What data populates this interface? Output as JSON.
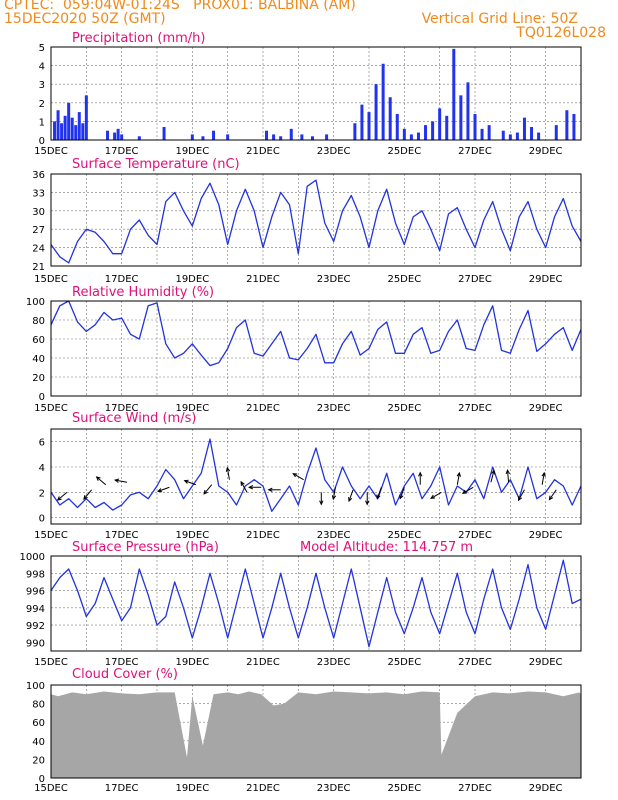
{
  "header": {
    "line1_left": "CPTEC:  059:04W-01:24S   PROX01: BALBINA (AM)",
    "line2_left": "15DEC2020 50Z (GMT)",
    "line2_right": "Vertical Grid Line: 50Z",
    "line3_right": "TQ0126L028"
  },
  "colors": {
    "header": "#f08a1c",
    "title": "#e0107a",
    "line": "#2233dd",
    "bar": "#2233ee",
    "wind_arrow": "#000000",
    "cloud": "#a6a6a6"
  },
  "x_ticks": [
    "15DEC",
    "17DEC",
    "19DEC",
    "21DEC",
    "23DEC",
    "25DEC",
    "27DEC",
    "29DEC"
  ],
  "chart_data": [
    {
      "type": "bar",
      "title": "Precipitation (mm/h)",
      "xlim": [
        0,
        15
      ],
      "ylim": [
        0,
        5
      ],
      "yticks": [
        "0",
        "1",
        "2",
        "3",
        "4",
        "5"
      ],
      "x": [
        0.1,
        0.2,
        0.3,
        0.4,
        0.5,
        0.6,
        0.7,
        0.8,
        0.9,
        1.0,
        1.6,
        1.8,
        1.9,
        2.0,
        2.5,
        3.2,
        4.0,
        4.3,
        4.6,
        5.0,
        6.1,
        6.3,
        6.5,
        6.8,
        7.1,
        7.4,
        7.8,
        8.6,
        8.8,
        9.0,
        9.2,
        9.4,
        9.6,
        9.8,
        10.0,
        10.2,
        10.4,
        10.6,
        10.8,
        11.0,
        11.2,
        11.4,
        11.6,
        11.8,
        12.0,
        12.2,
        12.4,
        12.8,
        13.0,
        13.2,
        13.4,
        13.6,
        13.8,
        14.3,
        14.6,
        14.8
      ],
      "values": [
        1.0,
        1.6,
        0.9,
        1.3,
        2.0,
        1.2,
        0.8,
        1.5,
        0.9,
        2.4,
        0.5,
        0.4,
        0.6,
        0.3,
        0.2,
        0.7,
        0.3,
        0.2,
        0.5,
        0.3,
        0.5,
        0.3,
        0.2,
        0.6,
        0.3,
        0.2,
        0.3,
        0.9,
        1.9,
        1.5,
        3.0,
        4.1,
        2.3,
        1.4,
        0.6,
        0.3,
        0.4,
        0.8,
        1.0,
        1.7,
        1.3,
        4.9,
        2.4,
        3.1,
        1.4,
        0.6,
        0.8,
        0.5,
        0.3,
        0.4,
        1.2,
        0.7,
        0.4,
        0.8,
        1.6,
        1.4
      ]
    },
    {
      "type": "line",
      "title": "Surface Temperature (nC)",
      "xlim": [
        0,
        15
      ],
      "ylim": [
        21,
        36
      ],
      "yticks": [
        "21",
        "24",
        "27",
        "30",
        "33",
        "36"
      ],
      "x": [
        0,
        0.25,
        0.5,
        0.75,
        1.0,
        1.25,
        1.5,
        1.75,
        2.0,
        2.25,
        2.5,
        2.75,
        3.0,
        3.25,
        3.5,
        3.75,
        4.0,
        4.25,
        4.5,
        4.75,
        5.0,
        5.25,
        5.5,
        5.75,
        6.0,
        6.25,
        6.5,
        6.75,
        7.0,
        7.25,
        7.5,
        7.75,
        8.0,
        8.25,
        8.5,
        8.75,
        9.0,
        9.25,
        9.5,
        9.75,
        10.0,
        10.25,
        10.5,
        10.75,
        11.0,
        11.25,
        11.5,
        11.75,
        12.0,
        12.25,
        12.5,
        12.75,
        13.0,
        13.25,
        13.5,
        13.75,
        14.0,
        14.25,
        14.5,
        14.75,
        15.0
      ],
      "values": [
        24.5,
        22.5,
        21.5,
        25.0,
        27.0,
        26.5,
        25.0,
        23.0,
        23.0,
        27.0,
        28.5,
        26.0,
        24.5,
        31.5,
        33.0,
        30.0,
        27.5,
        32.0,
        34.5,
        31.0,
        24.5,
        30.0,
        33.5,
        30.0,
        24.0,
        29.0,
        33.0,
        31.0,
        23.0,
        34.0,
        35.0,
        28.0,
        25.0,
        30.0,
        32.5,
        29.0,
        24.0,
        30.0,
        33.5,
        28.0,
        24.5,
        29.0,
        30.0,
        27.0,
        23.5,
        29.5,
        30.5,
        27.0,
        24.0,
        28.5,
        31.5,
        27.0,
        23.5,
        29.0,
        31.5,
        27.0,
        24.0,
        29.0,
        32.0,
        27.5,
        25.0
      ]
    },
    {
      "type": "line",
      "title": "Relative Humidity (%)",
      "xlim": [
        0,
        15
      ],
      "ylim": [
        0,
        100
      ],
      "yticks": [
        "0",
        "20",
        "40",
        "60",
        "80",
        "100"
      ],
      "x": [
        0,
        0.25,
        0.5,
        0.75,
        1.0,
        1.25,
        1.5,
        1.75,
        2.0,
        2.25,
        2.5,
        2.75,
        3.0,
        3.25,
        3.5,
        3.75,
        4.0,
        4.25,
        4.5,
        4.75,
        5.0,
        5.25,
        5.5,
        5.75,
        6.0,
        6.25,
        6.5,
        6.75,
        7.0,
        7.25,
        7.5,
        7.75,
        8.0,
        8.25,
        8.5,
        8.75,
        9.0,
        9.25,
        9.5,
        9.75,
        10.0,
        10.25,
        10.5,
        10.75,
        11.0,
        11.25,
        11.5,
        11.75,
        12.0,
        12.25,
        12.5,
        12.75,
        13.0,
        13.25,
        13.5,
        13.75,
        14.0,
        14.25,
        14.5,
        14.75,
        15.0
      ],
      "values": [
        75,
        95,
        100,
        78,
        68,
        75,
        88,
        80,
        82,
        65,
        60,
        95,
        98,
        55,
        40,
        45,
        55,
        43,
        32,
        35,
        50,
        72,
        80,
        45,
        42,
        55,
        68,
        40,
        38,
        50,
        65,
        35,
        35,
        55,
        68,
        43,
        50,
        70,
        78,
        45,
        45,
        65,
        72,
        45,
        48,
        68,
        80,
        50,
        48,
        75,
        95,
        48,
        45,
        70,
        90,
        47,
        55,
        65,
        72,
        48,
        70
      ]
    },
    {
      "type": "line",
      "title": "Surface Wind (m/s)",
      "xlim": [
        0,
        15
      ],
      "ylim": [
        -0.5,
        7
      ],
      "yticks": [
        "0",
        "2",
        "4",
        "6"
      ],
      "x": [
        0,
        0.25,
        0.5,
        0.75,
        1.0,
        1.25,
        1.5,
        1.75,
        2.0,
        2.25,
        2.5,
        2.75,
        3.0,
        3.25,
        3.5,
        3.75,
        4.0,
        4.25,
        4.5,
        4.75,
        5.0,
        5.25,
        5.5,
        5.75,
        6.0,
        6.25,
        6.5,
        6.75,
        7.0,
        7.25,
        7.5,
        7.75,
        8.0,
        8.25,
        8.5,
        8.75,
        9.0,
        9.25,
        9.5,
        9.75,
        10.0,
        10.25,
        10.5,
        10.75,
        11.0,
        11.25,
        11.5,
        11.75,
        12.0,
        12.25,
        12.5,
        12.75,
        13.0,
        13.25,
        13.5,
        13.75,
        14.0,
        14.25,
        14.5,
        14.75,
        15.0
      ],
      "values": [
        2.0,
        1.0,
        1.5,
        0.8,
        1.5,
        0.8,
        1.2,
        0.6,
        1.0,
        1.8,
        2.0,
        1.5,
        2.5,
        3.8,
        3.0,
        1.5,
        2.5,
        3.5,
        6.2,
        2.5,
        2.0,
        1.0,
        2.5,
        3.0,
        2.5,
        0.5,
        1.5,
        2.5,
        1.0,
        3.5,
        5.5,
        3.0,
        2.0,
        4.0,
        2.5,
        1.5,
        2.5,
        1.5,
        3.5,
        1.0,
        2.5,
        3.5,
        1.5,
        2.5,
        4.0,
        1.0,
        2.5,
        2.0,
        3.0,
        1.5,
        4.0,
        2.0,
        3.0,
        1.5,
        4.0,
        1.5,
        2.0,
        3.0,
        2.5,
        1.0,
        2.5
      ],
      "arrows": [
        {
          "x": 0.45,
          "speed": 2.0,
          "angle": 220
        },
        {
          "x": 1.15,
          "speed": 2.2,
          "angle": 230
        },
        {
          "x": 1.55,
          "speed": 2.6,
          "angle": 140
        },
        {
          "x": 2.15,
          "speed": 2.8,
          "angle": 170
        },
        {
          "x": 3.35,
          "speed": 2.4,
          "angle": 200
        },
        {
          "x": 4.1,
          "speed": 2.6,
          "angle": 160
        },
        {
          "x": 4.55,
          "speed": 2.6,
          "angle": 230
        },
        {
          "x": 5.05,
          "speed": 3.0,
          "angle": 100
        },
        {
          "x": 5.55,
          "speed": 2.0,
          "angle": 120
        },
        {
          "x": 5.95,
          "speed": 2.4,
          "angle": 180
        },
        {
          "x": 6.5,
          "speed": 2.2,
          "angle": 180
        },
        {
          "x": 7.15,
          "speed": 3.0,
          "angle": 150
        },
        {
          "x": 7.65,
          "speed": 2.0,
          "angle": 270
        },
        {
          "x": 8.05,
          "speed": 2.4,
          "angle": 260
        },
        {
          "x": 8.55,
          "speed": 2.2,
          "angle": 250
        },
        {
          "x": 8.95,
          "speed": 2.0,
          "angle": 270
        },
        {
          "x": 9.35,
          "speed": 2.4,
          "angle": 250
        },
        {
          "x": 10.0,
          "speed": 2.4,
          "angle": 250
        },
        {
          "x": 10.45,
          "speed": 2.6,
          "angle": 90
        },
        {
          "x": 11.05,
          "speed": 2.0,
          "angle": 210
        },
        {
          "x": 11.5,
          "speed": 2.6,
          "angle": 80
        },
        {
          "x": 11.95,
          "speed": 2.4,
          "angle": 210
        },
        {
          "x": 12.45,
          "speed": 2.8,
          "angle": 75
        },
        {
          "x": 12.95,
          "speed": 2.8,
          "angle": 95
        },
        {
          "x": 13.4,
          "speed": 2.2,
          "angle": 240
        },
        {
          "x": 13.9,
          "speed": 2.6,
          "angle": 80
        },
        {
          "x": 14.3,
          "speed": 2.2,
          "angle": 235
        }
      ]
    },
    {
      "type": "line",
      "title": "Surface Pressure (hPa)",
      "annotation": "Model Altitude: 114.757 m",
      "xlim": [
        0,
        15
      ],
      "ylim": [
        989,
        1000
      ],
      "yticks": [
        "990",
        "992",
        "994",
        "996",
        "998",
        "1000"
      ],
      "x": [
        0,
        0.25,
        0.5,
        0.75,
        1.0,
        1.25,
        1.5,
        1.75,
        2.0,
        2.25,
        2.5,
        2.75,
        3.0,
        3.25,
        3.5,
        3.75,
        4.0,
        4.25,
        4.5,
        4.75,
        5.0,
        5.25,
        5.5,
        5.75,
        6.0,
        6.25,
        6.5,
        6.75,
        7.0,
        7.25,
        7.5,
        7.75,
        8.0,
        8.25,
        8.5,
        8.75,
        9.0,
        9.25,
        9.5,
        9.75,
        10.0,
        10.25,
        10.5,
        10.75,
        11.0,
        11.25,
        11.5,
        11.75,
        12.0,
        12.25,
        12.5,
        12.75,
        13.0,
        13.25,
        13.5,
        13.75,
        14.0,
        14.25,
        14.5,
        14.75,
        15.0
      ],
      "values": [
        996.0,
        997.5,
        998.5,
        996.0,
        993.0,
        994.5,
        997.5,
        995.0,
        992.5,
        994.0,
        998.5,
        995.5,
        992.0,
        993.0,
        997.0,
        994.0,
        990.5,
        994.0,
        998.0,
        994.5,
        990.5,
        994.5,
        998.5,
        994.5,
        990.5,
        994.0,
        998.0,
        994.0,
        990.5,
        994.0,
        998.0,
        994.0,
        990.5,
        994.5,
        998.5,
        994.0,
        989.5,
        993.5,
        997.5,
        993.5,
        991.0,
        994.0,
        997.5,
        993.5,
        991.0,
        994.5,
        998.0,
        993.5,
        991.0,
        995.0,
        998.5,
        994.0,
        991.5,
        995.0,
        999.0,
        994.0,
        991.5,
        995.5,
        999.5,
        994.5,
        995.0
      ]
    },
    {
      "type": "bar",
      "title": "Cloud Cover (%)",
      "xlim": [
        0,
        15
      ],
      "ylim": [
        0,
        100
      ],
      "yticks": [
        "0",
        "20",
        "40",
        "60",
        "80",
        "100"
      ],
      "x": [
        0.2,
        0.6,
        1.0,
        1.5,
        2.0,
        2.5,
        3.0,
        3.5,
        3.85,
        4.0,
        4.3,
        4.6,
        5.0,
        5.3,
        5.6,
        5.95,
        6.3,
        6.6,
        7.0,
        7.5,
        8.0,
        8.5,
        9.0,
        9.5,
        10.0,
        10.5,
        11.0,
        11.05,
        11.5,
        12.0,
        12.5,
        13.0,
        13.5,
        14.0,
        14.5,
        14.95
      ],
      "values": [
        88,
        92,
        90,
        93,
        91,
        90,
        92,
        92,
        22,
        88,
        35,
        90,
        92,
        90,
        93,
        90,
        78,
        80,
        92,
        90,
        93,
        92,
        91,
        92,
        90,
        93,
        92,
        25,
        70,
        88,
        92,
        91,
        93,
        92,
        88,
        92
      ]
    }
  ]
}
